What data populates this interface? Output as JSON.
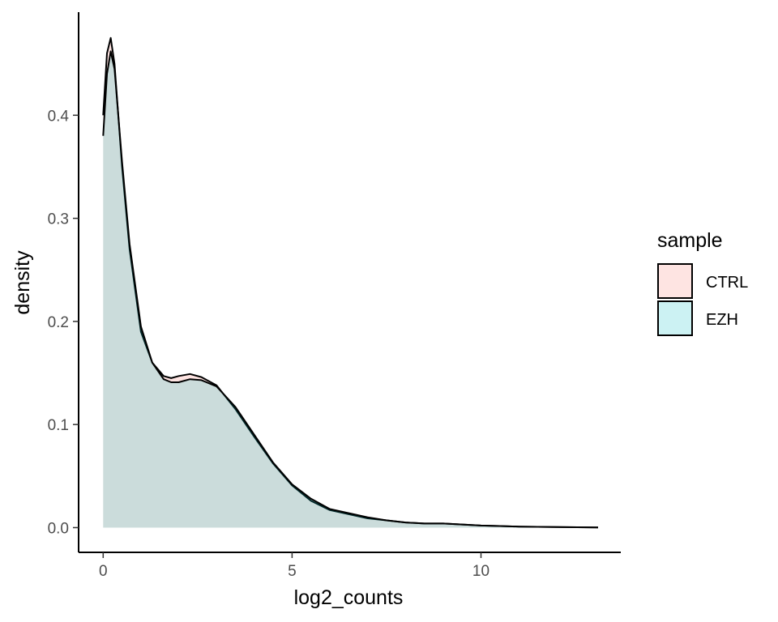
{
  "chart_data": {
    "type": "area",
    "xlabel": "log2_counts",
    "ylabel": "density",
    "xlim": [
      -0.65,
      13.7
    ],
    "ylim": [
      -0.024,
      0.5
    ],
    "x_ticks": [
      0,
      5,
      10
    ],
    "x_tick_labels": [
      "0",
      "5",
      "10"
    ],
    "y_ticks": [
      0.0,
      0.1,
      0.2,
      0.3,
      0.4
    ],
    "y_tick_labels": [
      "0.0",
      "0.1",
      "0.2",
      "0.3",
      "0.4"
    ],
    "grid": false,
    "legend": {
      "title": "sample",
      "position": "right"
    },
    "series": [
      {
        "name": "CTRL",
        "fill": "#F8766D",
        "fill_opacity": 0.2,
        "x": [
          0,
          0.1,
          0.2,
          0.3,
          0.5,
          0.7,
          1.0,
          1.3,
          1.6,
          1.8,
          2.0,
          2.3,
          2.6,
          3.0,
          3.5,
          4.0,
          4.5,
          5.0,
          5.5,
          6.0,
          6.5,
          7.0,
          7.5,
          8.0,
          8.5,
          9.0,
          9.5,
          10.0,
          10.5,
          11.0,
          12.0,
          13.1
        ],
        "y": [
          0.4,
          0.46,
          0.475,
          0.45,
          0.35,
          0.27,
          0.19,
          0.16,
          0.147,
          0.145,
          0.147,
          0.149,
          0.146,
          0.138,
          0.115,
          0.088,
          0.062,
          0.041,
          0.026,
          0.017,
          0.013,
          0.009,
          0.007,
          0.005,
          0.004,
          0.004,
          0.003,
          0.002,
          0.0015,
          0.001,
          0.0005,
          0.0002
        ]
      },
      {
        "name": "EZH",
        "fill": "#00BFC4",
        "fill_opacity": 0.2,
        "x": [
          0,
          0.1,
          0.2,
          0.3,
          0.5,
          0.7,
          1.0,
          1.3,
          1.6,
          1.8,
          2.0,
          2.3,
          2.6,
          3.0,
          3.5,
          4.0,
          4.5,
          5.0,
          5.5,
          6.0,
          6.5,
          7.0,
          7.5,
          8.0,
          8.5,
          9.0,
          9.5,
          10.0,
          10.5,
          11.0,
          12.0,
          13.1
        ],
        "y": [
          0.38,
          0.44,
          0.462,
          0.445,
          0.355,
          0.275,
          0.195,
          0.16,
          0.144,
          0.141,
          0.141,
          0.144,
          0.143,
          0.137,
          0.117,
          0.09,
          0.063,
          0.042,
          0.028,
          0.018,
          0.014,
          0.01,
          0.007,
          0.005,
          0.004,
          0.004,
          0.003,
          0.002,
          0.0015,
          0.001,
          0.0005,
          0.0002
        ]
      }
    ]
  }
}
